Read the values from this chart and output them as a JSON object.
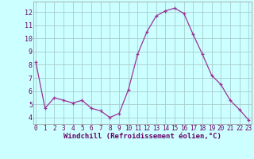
{
  "x": [
    0,
    1,
    2,
    3,
    4,
    5,
    6,
    7,
    8,
    9,
    10,
    11,
    12,
    13,
    14,
    15,
    16,
    17,
    18,
    19,
    20,
    21,
    22,
    23
  ],
  "y": [
    8.2,
    4.7,
    5.5,
    5.3,
    5.1,
    5.3,
    4.7,
    4.5,
    4.0,
    4.3,
    6.1,
    8.8,
    10.5,
    11.7,
    12.1,
    12.3,
    11.9,
    10.3,
    8.8,
    7.2,
    6.5,
    5.3,
    4.6,
    3.8
  ],
  "line_color": "#993399",
  "marker": "+",
  "marker_size": 3,
  "bg_color": "#ccffff",
  "grid_color": "#aacccc",
  "xlabel": "Windchill (Refroidissement éolien,°C)",
  "xlabel_fontsize": 6.5,
  "xtick_fontsize": 5.5,
  "ytick_fontsize": 6,
  "ylim": [
    3.5,
    12.8
  ],
  "yticks": [
    4,
    5,
    6,
    7,
    8,
    9,
    10,
    11,
    12
  ],
  "xticks": [
    0,
    1,
    2,
    3,
    4,
    5,
    6,
    7,
    8,
    9,
    10,
    11,
    12,
    13,
    14,
    15,
    16,
    17,
    18,
    19,
    20,
    21,
    22,
    23
  ],
  "xlim": [
    -0.3,
    23.3
  ]
}
